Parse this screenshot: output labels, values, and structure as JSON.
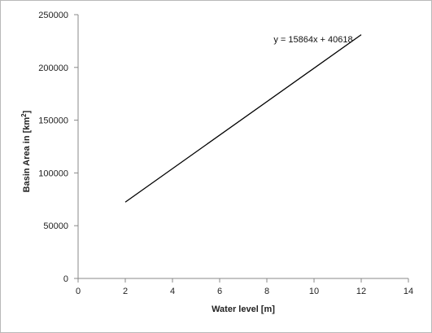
{
  "chart_data": {
    "type": "line",
    "title": "",
    "xlabel": "Water level [m]",
    "ylabel": "Basin Area in [km",
    "ylabel_unit_sup": "2",
    "ylabel_close": "]",
    "xlim": [
      0,
      14
    ],
    "ylim": [
      0,
      250000
    ],
    "xticks": [
      0,
      2,
      4,
      6,
      8,
      10,
      12,
      14
    ],
    "yticks": [
      0,
      50000,
      100000,
      150000,
      200000,
      250000
    ],
    "xtick_labels": [
      "0",
      "2",
      "4",
      "6",
      "8",
      "10",
      "12",
      "14"
    ],
    "ytick_labels": [
      "0",
      "50000",
      "100000",
      "150000",
      "200000",
      "250000"
    ],
    "grid": false,
    "legend": "none",
    "line_color": "#000000",
    "series": [
      {
        "x": [
          2,
          12
        ],
        "y": [
          72346,
          230986
        ]
      }
    ],
    "annotation": {
      "text": "y = 15864x + 40618",
      "x": 8,
      "y": 227000
    }
  }
}
